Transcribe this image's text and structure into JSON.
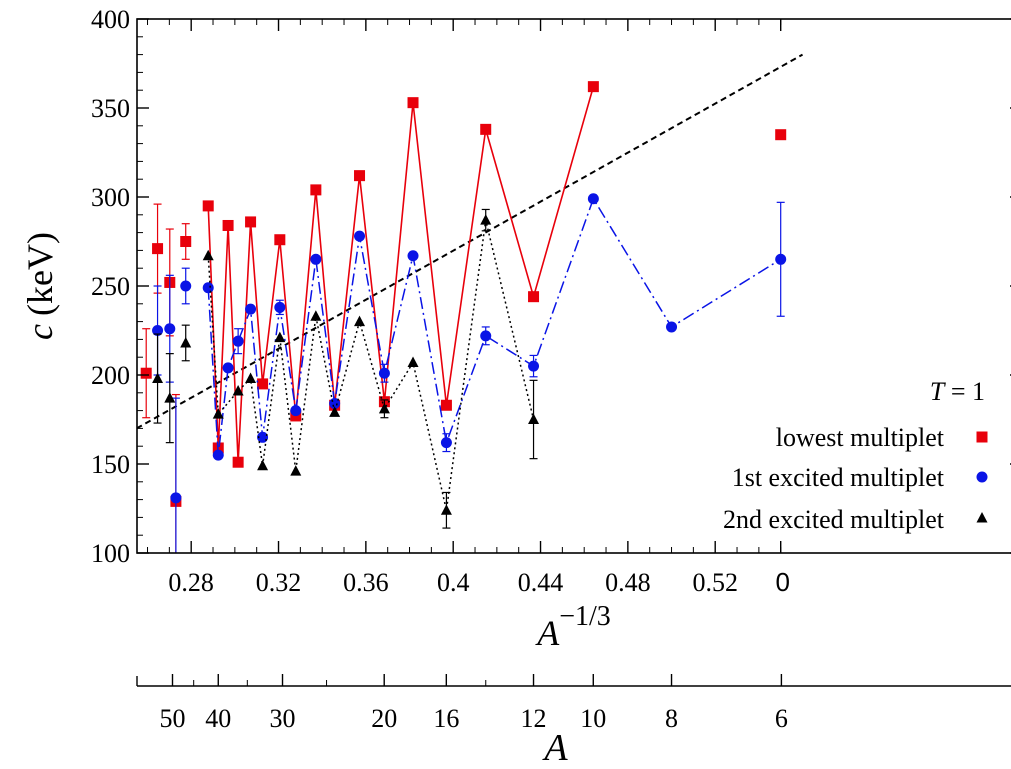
{
  "chart_data": {
    "type": "scatter",
    "xlabel": "A",
    "xlabel_exponent": "−1/3",
    "ylabel_var": "c",
    "ylabel_unit": "(keV)",
    "xlim": [
      0.255,
      0.56
    ],
    "ylim": [
      100,
      400
    ],
    "x_ticks": [
      {
        "value": 0.28,
        "label": "0.28"
      },
      {
        "value": 0.32,
        "label": "0.32"
      },
      {
        "value": 0.36,
        "label": "0.36"
      },
      {
        "value": 0.4,
        "label": "0.4"
      },
      {
        "value": 0.44,
        "label": "0.44"
      },
      {
        "value": 0.48,
        "label": "0.48"
      },
      {
        "value": 0.52,
        "label": "0.52"
      },
      {
        "value": 0.55,
        "label": "0"
      }
    ],
    "y_ticks": [
      {
        "value": 100,
        "label": "100"
      },
      {
        "value": 150,
        "label": "150"
      },
      {
        "value": 200,
        "label": "200"
      },
      {
        "value": 250,
        "label": "250"
      },
      {
        "value": 300,
        "label": "300"
      },
      {
        "value": 350,
        "label": "350"
      },
      {
        "value": 400,
        "label": "400"
      }
    ],
    "secondary_axis": {
      "label": "A",
      "ticks": [
        {
          "value": 50,
          "label": "50"
        },
        {
          "value": 40,
          "label": "40"
        },
        {
          "value": 30,
          "label": "30"
        },
        {
          "value": 20,
          "label": "20"
        },
        {
          "value": 16,
          "label": "16"
        },
        {
          "value": 12,
          "label": "12"
        },
        {
          "value": 10,
          "label": "10"
        },
        {
          "value": 8,
          "label": "8"
        },
        {
          "value": 6,
          "label": "6"
        }
      ],
      "minor_ticks": [
        45,
        35,
        25,
        14
      ]
    },
    "legend": {
      "position": "bottom-right",
      "header_var": "T",
      "header_rest": " = 1"
    },
    "fit_line": {
      "style": "dashed",
      "color": "#000000",
      "x": [
        0.255,
        0.56
      ],
      "y": [
        170,
        380
      ]
    },
    "series": [
      {
        "name": "lowest multiplet",
        "color": "#e8000b",
        "marker": "square",
        "line": "solid",
        "connected": [
          {
            "x": 0.2878,
            "y": 295
          },
          {
            "x": 0.2924,
            "y": 159
          },
          {
            "x": 0.2969,
            "y": 284
          },
          {
            "x": 0.3015,
            "y": 151
          },
          {
            "x": 0.3072,
            "y": 286
          },
          {
            "x": 0.3127,
            "y": 195
          },
          {
            "x": 0.3206,
            "y": 276
          },
          {
            "x": 0.3279,
            "y": 177
          },
          {
            "x": 0.3371,
            "y": 304
          },
          {
            "x": 0.3457,
            "y": 183
          },
          {
            "x": 0.3571,
            "y": 312
          },
          {
            "x": 0.3685,
            "y": 185
          },
          {
            "x": 0.3816,
            "y": 353
          },
          {
            "x": 0.3969,
            "y": 183
          },
          {
            "x": 0.4149,
            "y": 338
          },
          {
            "x": 0.4368,
            "y": 244
          },
          {
            "x": 0.4642,
            "y": 362
          }
        ],
        "isolated": [
          {
            "x": 0.2594,
            "y": 201,
            "err": 25
          },
          {
            "x": 0.2646,
            "y": 271,
            "err": 25
          },
          {
            "x": 0.2702,
            "y": 252,
            "err": 30
          },
          {
            "x": 0.273,
            "y": 129,
            "err": 60
          },
          {
            "x": 0.2775,
            "y": 275,
            "err": 10
          },
          {
            "x": 0.55,
            "y": 335,
            "err": 0
          }
        ]
      },
      {
        "name": "1st excited multiplet",
        "color": "#0a14e6",
        "marker": "circle",
        "line": "dashdot",
        "connected": [
          {
            "x": 0.2878,
            "y": 249
          },
          {
            "x": 0.2924,
            "y": 155
          },
          {
            "x": 0.2969,
            "y": 204
          },
          {
            "x": 0.3015,
            "y": 219,
            "err": 7
          },
          {
            "x": 0.3072,
            "y": 237
          },
          {
            "x": 0.3127,
            "y": 165
          },
          {
            "x": 0.3206,
            "y": 238,
            "err": 4
          },
          {
            "x": 0.3279,
            "y": 180
          },
          {
            "x": 0.3371,
            "y": 265
          },
          {
            "x": 0.3457,
            "y": 184
          },
          {
            "x": 0.3571,
            "y": 278
          },
          {
            "x": 0.3685,
            "y": 201,
            "err": 5
          },
          {
            "x": 0.3816,
            "y": 267
          },
          {
            "x": 0.3969,
            "y": 162,
            "err": 5
          },
          {
            "x": 0.4149,
            "y": 222,
            "err": 5
          },
          {
            "x": 0.4368,
            "y": 205,
            "err": 6
          },
          {
            "x": 0.4642,
            "y": 299
          },
          {
            "x": 0.5,
            "y": 227
          },
          {
            "x": 0.55,
            "y": 265,
            "err": 32
          }
        ],
        "isolated": [
          {
            "x": 0.2646,
            "y": 225,
            "err": 25
          },
          {
            "x": 0.2702,
            "y": 226,
            "err": 30
          },
          {
            "x": 0.273,
            "y": 131,
            "err": 56
          },
          {
            "x": 0.2775,
            "y": 250,
            "err": 10
          }
        ]
      },
      {
        "name": "2nd excited multiplet",
        "color": "#000000",
        "marker": "triangle",
        "line": "dotted",
        "connected": [
          {
            "x": 0.2878,
            "y": 267
          },
          {
            "x": 0.2924,
            "y": 178
          },
          {
            "x": 0.3015,
            "y": 191
          },
          {
            "x": 0.3072,
            "y": 198
          },
          {
            "x": 0.3127,
            "y": 149
          },
          {
            "x": 0.3206,
            "y": 221
          },
          {
            "x": 0.3279,
            "y": 146
          },
          {
            "x": 0.3371,
            "y": 233
          },
          {
            "x": 0.3457,
            "y": 179
          },
          {
            "x": 0.3571,
            "y": 230
          },
          {
            "x": 0.3685,
            "y": 181,
            "err": 5
          },
          {
            "x": 0.3816,
            "y": 207
          },
          {
            "x": 0.3969,
            "y": 124,
            "err": 10
          },
          {
            "x": 0.4149,
            "y": 287,
            "err": 6
          },
          {
            "x": 0.4368,
            "y": 175,
            "err": 22
          }
        ],
        "isolated": [
          {
            "x": 0.2646,
            "y": 198,
            "err": 25
          },
          {
            "x": 0.2702,
            "y": 187,
            "err": 25
          },
          {
            "x": 0.2775,
            "y": 218,
            "err": 10
          }
        ]
      }
    ]
  }
}
